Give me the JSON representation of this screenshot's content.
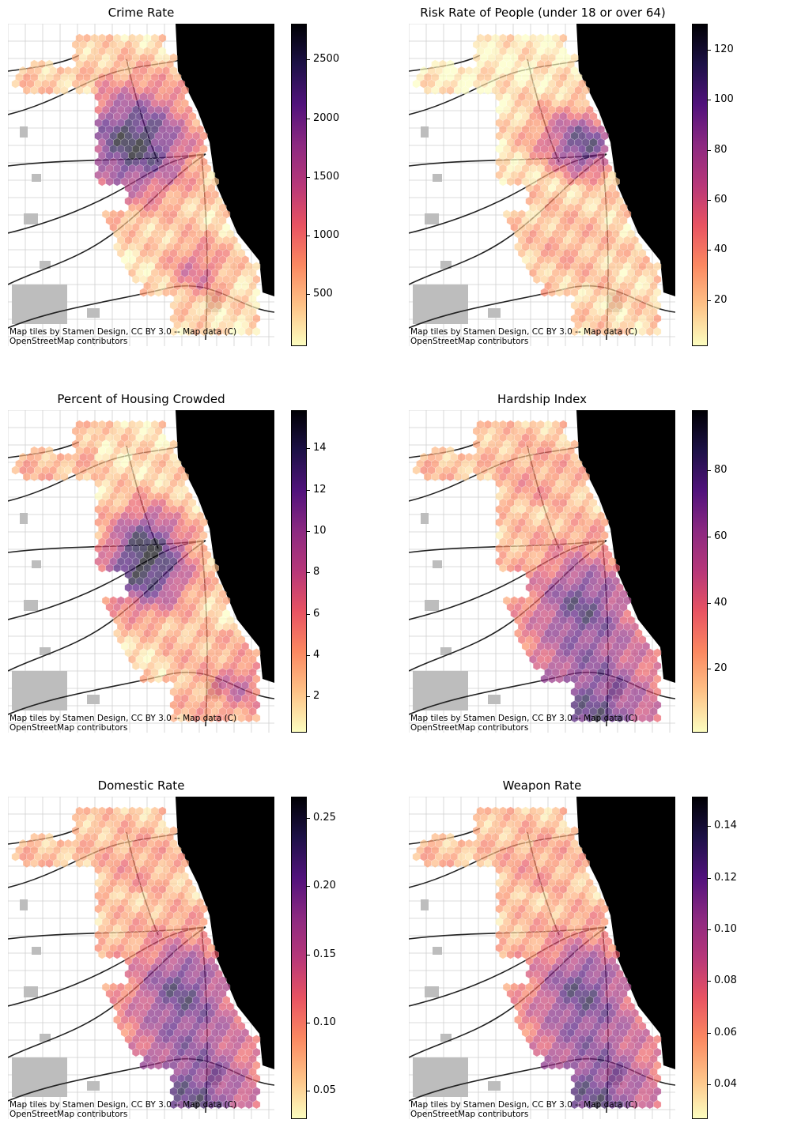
{
  "attribution": "Map tiles by Stamen Design, CC BY 3.0 -- Map data (C)\nOpenStreetMap contributors",
  "colormap": [
    "#fcfdbf",
    "#fec287",
    "#fb8861",
    "#e85362",
    "#b73779",
    "#8c2981",
    "#51127c",
    "#1d1147",
    "#000004"
  ],
  "panels": [
    {
      "id": "crime-rate",
      "title": "Crime Rate",
      "ticks": [
        "500",
        "1000",
        "1500",
        "2000",
        "2500"
      ],
      "tick_values": [
        500,
        1000,
        1500,
        2000,
        2500
      ],
      "range": [
        60,
        2800
      ],
      "hot_zone": "west-central"
    },
    {
      "id": "risk-rate",
      "title": "Risk Rate of People (under 18 or over 64)",
      "ticks": [
        "20",
        "40",
        "60",
        "80",
        "100",
        "120"
      ],
      "tick_values": [
        20,
        40,
        60,
        80,
        100,
        120
      ],
      "range": [
        2,
        130
      ],
      "hot_zone": "downtown"
    },
    {
      "id": "housing-crowded",
      "title": "Percent of Housing Crowded",
      "ticks": [
        "2",
        "4",
        "6",
        "8",
        "10",
        "12",
        "14"
      ],
      "tick_values": [
        2,
        4,
        6,
        8,
        10,
        12,
        14
      ],
      "range": [
        0.3,
        15.8
      ],
      "hot_zone": "southwest"
    },
    {
      "id": "hardship-index",
      "title": "Hardship Index",
      "ticks": [
        "20",
        "40",
        "60",
        "80"
      ],
      "tick_values": [
        20,
        40,
        60,
        80
      ],
      "range": [
        1,
        98
      ],
      "hot_zone": "south"
    },
    {
      "id": "domestic-rate",
      "title": "Domestic Rate",
      "ticks": [
        "0.05",
        "0.10",
        "0.15",
        "0.20",
        "0.25"
      ],
      "tick_values": [
        0.05,
        0.1,
        0.15,
        0.2,
        0.25
      ],
      "range": [
        0.03,
        0.265
      ],
      "hot_zone": "south"
    },
    {
      "id": "weapon-rate",
      "title": "Weapon Rate",
      "ticks": [
        "0.04",
        "0.06",
        "0.08",
        "0.10",
        "0.12",
        "0.14"
      ],
      "tick_values": [
        0.04,
        0.06,
        0.08,
        0.1,
        0.12,
        0.14
      ],
      "range": [
        0.027,
        0.151
      ],
      "hot_zone": "south"
    }
  ]
}
